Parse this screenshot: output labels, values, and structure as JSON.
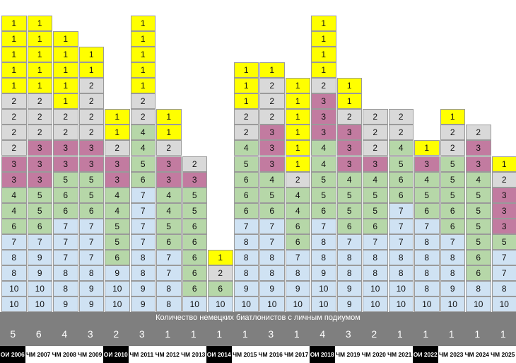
{
  "chart_data": {
    "type": "table",
    "title": "Количество немецких биатлонистов с личным подиумом",
    "colors": {
      "1": "#ffff00",
      "2": "#d9d9d9",
      "3": "#c27ba0",
      "4": "#b6d7a8",
      "5": "#b6d7a8",
      "6": "#b6d7a8",
      "7": "#cfe2f3",
      "8": "#cfe2f3",
      "9": "#cfe2f3",
      "10": "#cfe2f3",
      "band": "#7f7f7f",
      "olympic_label": "#000000"
    },
    "columns": [
      {
        "event": "ОИ 2006",
        "olympic": true,
        "count": "5",
        "cells": [
          "1",
          "1",
          "1",
          "1",
          "1",
          "2",
          "2",
          "2",
          "2",
          "3",
          "3",
          "4",
          "4",
          "6",
          "7",
          "8",
          "8",
          "10",
          "10"
        ]
      },
      {
        "event": "ЧМ 2007",
        "olympic": false,
        "count": "6",
        "cells": [
          "1",
          "1",
          "1",
          "1",
          "1",
          "2",
          "2",
          "2",
          "3",
          "3",
          "3",
          "5",
          "5",
          "6",
          "7",
          "9",
          "9",
          "10",
          "10"
        ]
      },
      {
        "event": "ЧМ 2008",
        "olympic": false,
        "count": "4",
        "cells": [
          "1",
          "1",
          "1",
          "1",
          "1",
          "2",
          "2",
          "3",
          "3",
          "5",
          "6",
          "6",
          "7",
          "7",
          "7",
          "8",
          "8",
          "9"
        ]
      },
      {
        "event": "ЧМ 2009",
        "olympic": false,
        "count": "3",
        "cells": [
          "1",
          "1",
          "2",
          "2",
          "2",
          "2",
          "3",
          "3",
          "5",
          "5",
          "6",
          "7",
          "7",
          "7",
          "8",
          "9",
          "9"
        ]
      },
      {
        "event": "ОИ 2010",
        "olympic": true,
        "count": "2",
        "cells": [
          "1",
          "1",
          "2",
          "3",
          "3",
          "4",
          "4",
          "5",
          "5",
          "6",
          "9",
          "10",
          "10"
        ]
      },
      {
        "event": "ЧМ 2011",
        "olympic": false,
        "count": "3",
        "cells": [
          "1",
          "1",
          "1",
          "1",
          "1",
          "2",
          "2",
          "4",
          "4",
          "5",
          "6",
          "7",
          "7",
          "7",
          "7",
          "8",
          "8",
          "9",
          "9"
        ]
      },
      {
        "event": "ЧМ 2012",
        "olympic": false,
        "count": "1",
        "cells": [
          "1",
          "1",
          "2",
          "3",
          "3",
          "4",
          "4",
          "5",
          "6",
          "7",
          "7",
          "8",
          "8"
        ]
      },
      {
        "event": "ЧМ 2013",
        "olympic": false,
        "count": "1",
        "cells": [
          "2",
          "3",
          "5",
          "5",
          "6",
          "6",
          "6",
          "6",
          "6",
          "10"
        ]
      },
      {
        "event": "ОИ 2014",
        "olympic": true,
        "count": "1",
        "cells": [
          "1",
          "2",
          "6",
          "10"
        ]
      },
      {
        "event": "ЧМ 2015",
        "olympic": false,
        "count": "1",
        "cells": [
          "1",
          "1",
          "1",
          "2",
          "2",
          "4",
          "5",
          "6",
          "6",
          "6",
          "7",
          "8",
          "8",
          "8",
          "9",
          "10"
        ]
      },
      {
        "event": "ЧМ 2016",
        "olympic": false,
        "count": "3",
        "cells": [
          "1",
          "2",
          "2",
          "2",
          "3",
          "3",
          "3",
          "4",
          "5",
          "6",
          "7",
          "7",
          "8",
          "8",
          "9",
          "10"
        ]
      },
      {
        "event": "ЧМ 2017",
        "olympic": false,
        "count": "1",
        "cells": [
          "1",
          "1",
          "1",
          "1",
          "1",
          "1",
          "2",
          "4",
          "4",
          "6",
          "6",
          "7",
          "8",
          "9",
          "10"
        ]
      },
      {
        "event": "ОИ 2018",
        "olympic": true,
        "count": "4",
        "cells": [
          "1",
          "1",
          "1",
          "1",
          "2",
          "3",
          "3",
          "3",
          "4",
          "4",
          "5",
          "5",
          "6",
          "7",
          "8",
          "8",
          "9",
          "10",
          "10"
        ]
      },
      {
        "event": "ЧМ 2019",
        "olympic": false,
        "count": "3",
        "cells": [
          "1",
          "1",
          "2",
          "3",
          "3",
          "3",
          "4",
          "5",
          "5",
          "6",
          "7",
          "8",
          "8",
          "9",
          "9"
        ]
      },
      {
        "event": "ЧМ 2020",
        "olympic": false,
        "count": "2",
        "cells": [
          "2",
          "2",
          "2",
          "3",
          "4",
          "5",
          "5",
          "6",
          "7",
          "8",
          "8",
          "10",
          "10"
        ]
      },
      {
        "event": "ЧМ 2021",
        "olympic": false,
        "count": "1",
        "cells": [
          "2",
          "2",
          "4",
          "5",
          "6",
          "6",
          "7",
          "7",
          "7",
          "8",
          "8",
          "10",
          "10"
        ]
      },
      {
        "event": "ОИ 2022",
        "olympic": true,
        "count": "1",
        "cells": [
          "1",
          "3",
          "4",
          "5",
          "6",
          "7",
          "8",
          "8",
          "8",
          "8",
          "10"
        ]
      },
      {
        "event": "ЧМ 2023",
        "olympic": false,
        "count": "1",
        "cells": [
          "1",
          "2",
          "2",
          "5",
          "5",
          "5",
          "6",
          "6",
          "7",
          "8",
          "8",
          "9",
          "10"
        ]
      },
      {
        "event": "ЧМ 2024",
        "olympic": false,
        "count": "1",
        "cells": [
          "2",
          "3",
          "3",
          "4",
          "5",
          "5",
          "5",
          "5",
          "6",
          "6",
          "8",
          "10"
        ]
      },
      {
        "event": "ЧМ 2025",
        "olympic": false,
        "count": "1",
        "cells": [
          "1",
          "2",
          "3",
          "3",
          "3",
          "5",
          "7",
          "7",
          "8",
          "10"
        ]
      }
    ]
  }
}
